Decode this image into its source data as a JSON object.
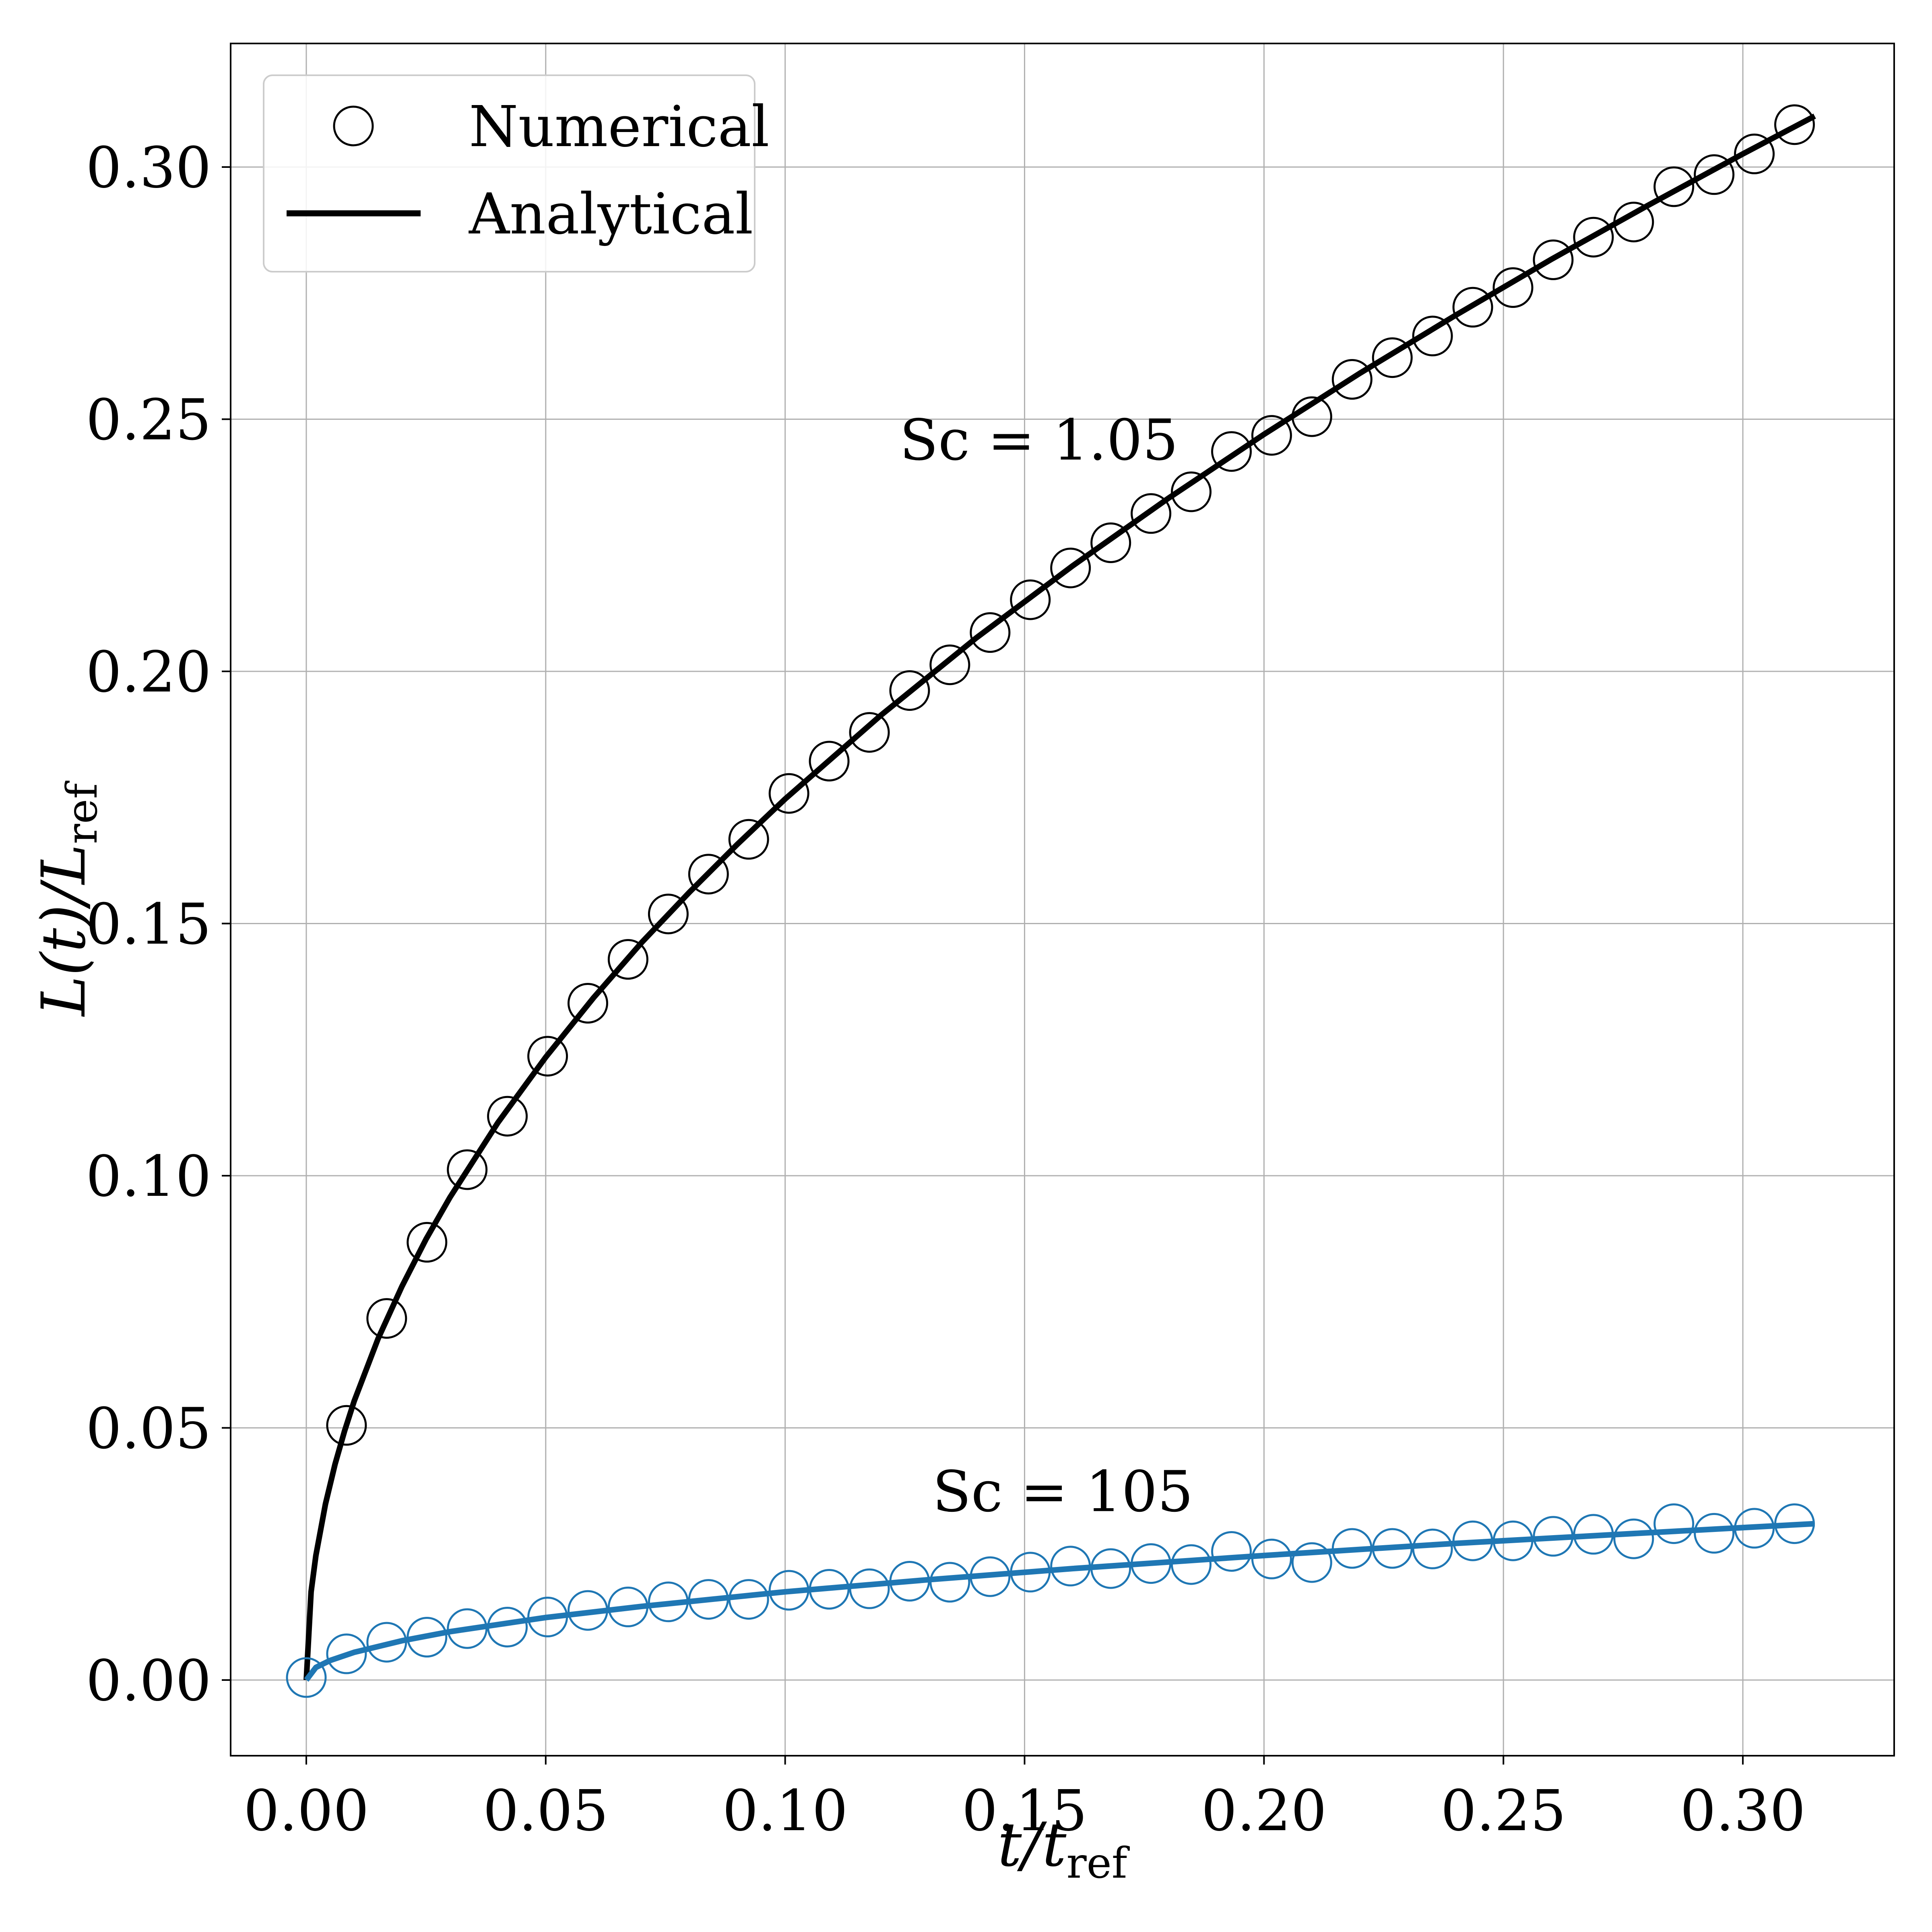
{
  "chart_data": {
    "type": "line",
    "xlabel": {
      "main": "t/t",
      "sub": "ref"
    },
    "ylabel": {
      "main": "L(t)/L",
      "sub": "ref"
    },
    "xlim": [
      -0.0158,
      0.3316
    ],
    "ylim": [
      -0.015,
      0.3245
    ],
    "xticks": [
      0.0,
      0.05,
      0.1,
      0.15,
      0.2,
      0.25,
      0.3
    ],
    "xtick_labels": [
      "0.00",
      "0.05",
      "0.10",
      "0.15",
      "0.20",
      "0.25",
      "0.30"
    ],
    "yticks": [
      0.0,
      0.05,
      0.1,
      0.15,
      0.2,
      0.25,
      0.3
    ],
    "ytick_labels": [
      "0.00",
      "0.05",
      "0.10",
      "0.15",
      "0.20",
      "0.25",
      "0.30"
    ],
    "grid": true,
    "legend": {
      "placement": "top-left",
      "entries": [
        {
          "label": "Numerical",
          "marker": "open-circle"
        },
        {
          "label": "Analytical",
          "marker": "line"
        }
      ]
    },
    "annotations": [
      {
        "text": "Sc = 1.05",
        "x": 0.153,
        "y": 0.242
      },
      {
        "text": "Sc = 105",
        "x": 0.158,
        "y": 0.0335
      }
    ],
    "series": [
      {
        "kind": "analytical-curve",
        "color": "#000000",
        "x": [
          0.0,
          0.001,
          0.002,
          0.004,
          0.006,
          0.008,
          0.01,
          0.015,
          0.02,
          0.025,
          0.03,
          0.04,
          0.05,
          0.06,
          0.07,
          0.08,
          0.09,
          0.1,
          0.12,
          0.14,
          0.16,
          0.18,
          0.2,
          0.22,
          0.24,
          0.26,
          0.28,
          0.3,
          0.315
        ],
        "y": [
          0.0,
          0.0175,
          0.0247,
          0.0349,
          0.0428,
          0.0494,
          0.0553,
          0.0677,
          0.0781,
          0.0874,
          0.0957,
          0.1105,
          0.1235,
          0.1353,
          0.1462,
          0.1562,
          0.1657,
          0.1747,
          0.1913,
          0.2067,
          0.2209,
          0.2343,
          0.247,
          0.2591,
          0.2706,
          0.2817,
          0.2923,
          0.3026,
          0.3101
        ]
      },
      {
        "kind": "numerical-markers",
        "color": "#000000",
        "x": [
          0.0084,
          0.0168,
          0.0252,
          0.0336,
          0.042,
          0.0504,
          0.0588,
          0.0672,
          0.0756,
          0.084,
          0.0924,
          0.1008,
          0.1092,
          0.1176,
          0.126,
          0.1344,
          0.1428,
          0.1512,
          0.1596,
          0.168,
          0.1764,
          0.1848,
          0.1932,
          0.2016,
          0.21,
          0.2184,
          0.2268,
          0.2352,
          0.2436,
          0.252,
          0.2604,
          0.2688,
          0.2772,
          0.2856,
          0.294,
          0.3024,
          0.3108
        ],
        "y": [
          0.0505,
          0.0717,
          0.0868,
          0.1012,
          0.1118,
          0.1237,
          0.1342,
          0.1429,
          0.1519,
          0.1598,
          0.1667,
          0.1758,
          0.1822,
          0.1879,
          0.1962,
          0.2013,
          0.2077,
          0.2142,
          0.2205,
          0.2255,
          0.2313,
          0.2356,
          0.2436,
          0.2468,
          0.2505,
          0.2579,
          0.2622,
          0.2665,
          0.2722,
          0.2761,
          0.2816,
          0.2861,
          0.2891,
          0.2961,
          0.2985,
          0.3026,
          0.3084
        ]
      },
      {
        "kind": "analytical-curve",
        "color": "#1f77b4",
        "x": [
          0.0,
          0.002,
          0.005,
          0.01,
          0.02,
          0.03,
          0.05,
          0.07,
          0.1,
          0.13,
          0.16,
          0.2,
          0.24,
          0.28,
          0.315
        ],
        "y": [
          0.0,
          0.0025,
          0.0039,
          0.0055,
          0.0078,
          0.0096,
          0.0124,
          0.0146,
          0.0175,
          0.0199,
          0.0221,
          0.0247,
          0.0271,
          0.0292,
          0.031
        ]
      },
      {
        "kind": "numerical-markers",
        "color": "#1f77b4",
        "x": [
          0.0,
          0.0084,
          0.0168,
          0.0252,
          0.0336,
          0.042,
          0.0504,
          0.0588,
          0.0672,
          0.0756,
          0.084,
          0.0924,
          0.1008,
          0.1092,
          0.1176,
          0.126,
          0.1344,
          0.1428,
          0.1512,
          0.1596,
          0.168,
          0.1764,
          0.1848,
          0.1932,
          0.2016,
          0.21,
          0.2184,
          0.2268,
          0.2352,
          0.2436,
          0.252,
          0.2604,
          0.2688,
          0.2772,
          0.2856,
          0.294,
          0.3024,
          0.3108
        ],
        "y": [
          0.0005,
          0.0052,
          0.0075,
          0.0085,
          0.0102,
          0.0105,
          0.0125,
          0.0138,
          0.0145,
          0.0155,
          0.016,
          0.016,
          0.0178,
          0.018,
          0.0181,
          0.0196,
          0.0194,
          0.0205,
          0.0214,
          0.0226,
          0.0221,
          0.0231,
          0.0229,
          0.0255,
          0.024,
          0.0233,
          0.0261,
          0.0261,
          0.026,
          0.0276,
          0.0276,
          0.0285,
          0.0289,
          0.028,
          0.031,
          0.0291,
          0.0301,
          0.031
        ]
      }
    ]
  }
}
